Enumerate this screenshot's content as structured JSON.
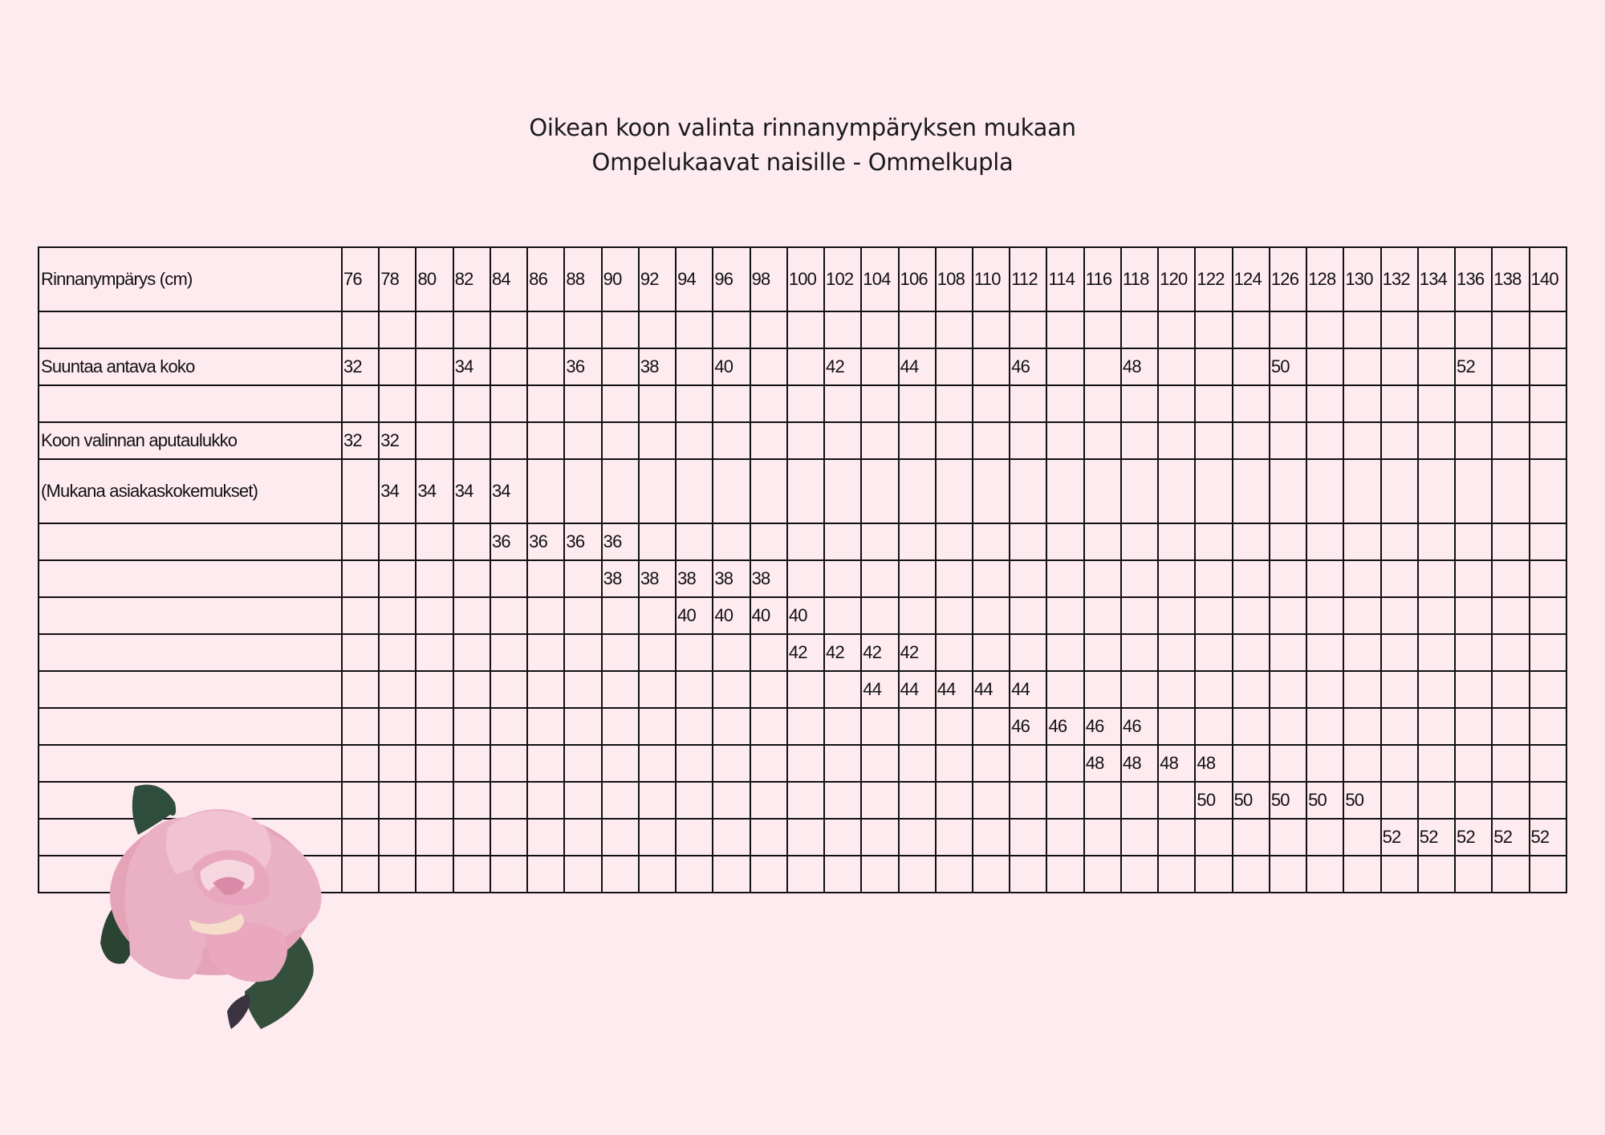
{
  "title": {
    "line1": "Oikean koon valinta rinnanympäryksen mukaan",
    "line2": "Ompelukaavat naisille - Ommelkupla"
  },
  "colors": {
    "background": "#feebf0",
    "grid": "#111111",
    "rose": "#e8a6bd",
    "leaf": "#2f4a38"
  },
  "decoration": "rose-illustration",
  "table": {
    "header": {
      "label": "Rinnanympärys (cm)",
      "cells": [
        "76",
        "78",
        "80",
        "82",
        "84",
        "86",
        "88",
        "90",
        "92",
        "94",
        "96",
        "98",
        "100",
        "102",
        "104",
        "106",
        "108",
        "110",
        "112",
        "114",
        "116",
        "118",
        "120",
        "122",
        "124",
        "126",
        "128",
        "130",
        "132",
        "134",
        "136",
        "138",
        "140"
      ]
    },
    "rows": [
      {
        "label": "",
        "cells": [
          "",
          "",
          "",
          "",
          "",
          "",
          "",
          "",
          "",
          "",
          "",
          "",
          "",
          "",
          "",
          "",
          "",
          "",
          "",
          "",
          "",
          "",
          "",
          "",
          "",
          "",
          "",
          "",
          "",
          "",
          "",
          "",
          ""
        ]
      },
      {
        "label": "Suuntaa antava koko",
        "cells": [
          "32",
          "",
          "",
          "34",
          "",
          "",
          "36",
          "",
          "38",
          "",
          "40",
          "",
          "",
          "42",
          "",
          "44",
          "",
          "",
          "46",
          "",
          "",
          "48",
          "",
          "",
          "",
          "50",
          "",
          "",
          "",
          "",
          "52",
          "",
          ""
        ]
      },
      {
        "label": "",
        "cells": [
          "",
          "",
          "",
          "",
          "",
          "",
          "",
          "",
          "",
          "",
          "",
          "",
          "",
          "",
          "",
          "",
          "",
          "",
          "",
          "",
          "",
          "",
          "",
          "",
          "",
          "",
          "",
          "",
          "",
          "",
          "",
          "",
          ""
        ]
      },
      {
        "label": "Koon valinnan aputaulukko",
        "cells": [
          "32",
          "32",
          "",
          "",
          "",
          "",
          "",
          "",
          "",
          "",
          "",
          "",
          "",
          "",
          "",
          "",
          "",
          "",
          "",
          "",
          "",
          "",
          "",
          "",
          "",
          "",
          "",
          "",
          "",
          "",
          "",
          "",
          ""
        ]
      },
      {
        "label": "(Mukana asiakaskokemukset)",
        "tall": true,
        "cells": [
          "",
          "34",
          "34",
          "34",
          "34",
          "",
          "",
          "",
          "",
          "",
          "",
          "",
          "",
          "",
          "",
          "",
          "",
          "",
          "",
          "",
          "",
          "",
          "",
          "",
          "",
          "",
          "",
          "",
          "",
          "",
          "",
          "",
          ""
        ]
      },
      {
        "label": "",
        "cells": [
          "",
          "",
          "",
          "",
          "36",
          "36",
          "36",
          "36",
          "",
          "",
          "",
          "",
          "",
          "",
          "",
          "",
          "",
          "",
          "",
          "",
          "",
          "",
          "",
          "",
          "",
          "",
          "",
          "",
          "",
          "",
          "",
          "",
          ""
        ]
      },
      {
        "label": "",
        "cells": [
          "",
          "",
          "",
          "",
          "",
          "",
          "",
          "38",
          "38",
          "38",
          "38",
          "38",
          "",
          "",
          "",
          "",
          "",
          "",
          "",
          "",
          "",
          "",
          "",
          "",
          "",
          "",
          "",
          "",
          "",
          "",
          "",
          "",
          ""
        ]
      },
      {
        "label": "",
        "cells": [
          "",
          "",
          "",
          "",
          "",
          "",
          "",
          "",
          "",
          "40",
          "40",
          "40",
          "40",
          "",
          "",
          "",
          "",
          "",
          "",
          "",
          "",
          "",
          "",
          "",
          "",
          "",
          "",
          "",
          "",
          "",
          "",
          "",
          ""
        ]
      },
      {
        "label": "",
        "cells": [
          "",
          "",
          "",
          "",
          "",
          "",
          "",
          "",
          "",
          "",
          "",
          "",
          "42",
          "42",
          "42",
          "42",
          "",
          "",
          "",
          "",
          "",
          "",
          "",
          "",
          "",
          "",
          "",
          "",
          "",
          "",
          "",
          "",
          ""
        ]
      },
      {
        "label": "",
        "cells": [
          "",
          "",
          "",
          "",
          "",
          "",
          "",
          "",
          "",
          "",
          "",
          "",
          "",
          "",
          "44",
          "44",
          "44",
          "44",
          "44",
          "",
          "",
          "",
          "",
          "",
          "",
          "",
          "",
          "",
          "",
          "",
          "",
          "",
          ""
        ]
      },
      {
        "label": "",
        "cells": [
          "",
          "",
          "",
          "",
          "",
          "",
          "",
          "",
          "",
          "",
          "",
          "",
          "",
          "",
          "",
          "",
          "",
          "",
          "46",
          "46",
          "46",
          "46",
          "",
          "",
          "",
          "",
          "",
          "",
          "",
          "",
          "",
          "",
          ""
        ]
      },
      {
        "label": "",
        "cells": [
          "",
          "",
          "",
          "",
          "",
          "",
          "",
          "",
          "",
          "",
          "",
          "",
          "",
          "",
          "",
          "",
          "",
          "",
          "",
          "",
          "48",
          "48",
          "48",
          "48",
          "",
          "",
          "",
          "",
          "",
          "",
          "",
          "",
          ""
        ]
      },
      {
        "label": "",
        "cells": [
          "",
          "",
          "",
          "",
          "",
          "",
          "",
          "",
          "",
          "",
          "",
          "",
          "",
          "",
          "",
          "",
          "",
          "",
          "",
          "",
          "",
          "",
          "",
          "50",
          "50",
          "50",
          "50",
          "50",
          "",
          "",
          "",
          "",
          ""
        ]
      },
      {
        "label": "",
        "cells": [
          "",
          "",
          "",
          "",
          "",
          "",
          "",
          "",
          "",
          "",
          "",
          "",
          "",
          "",
          "",
          "",
          "",
          "",
          "",
          "",
          "",
          "",
          "",
          "",
          "",
          "",
          "",
          "",
          "52",
          "52",
          "52",
          "52",
          "52"
        ]
      },
      {
        "label": "",
        "cells": [
          "",
          "",
          "",
          "",
          "",
          "",
          "",
          "",
          "",
          "",
          "",
          "",
          "",
          "",
          "",
          "",
          "",
          "",
          "",
          "",
          "",
          "",
          "",
          "",
          "",
          "",
          "",
          "",
          "",
          "",
          "",
          "",
          ""
        ]
      }
    ]
  }
}
